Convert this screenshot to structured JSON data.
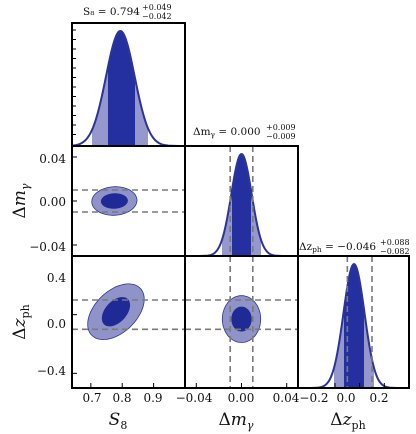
{
  "chart_data": {
    "type": "corner",
    "parameters": [
      {
        "key": "S8",
        "label": "S₈",
        "title_lhs": "S₈ = 0.794",
        "title_sup": "+0.049",
        "title_sub": "−0.042",
        "mean": 0.794,
        "err_plus": 0.049,
        "err_minus": 0.042,
        "range": [
          0.64,
          1.0
        ],
        "ticks": [
          0.7,
          0.8,
          0.9
        ],
        "tick_labels": [
          "0.7",
          "0.8",
          "0.9"
        ]
      },
      {
        "key": "dm",
        "label": "Δm",
        "label_sub": "γ",
        "title_lhs": "Δm",
        "title_lhs_sub": "γ",
        "title_rhs": " = 0.000",
        "title_sup": "+0.009",
        "title_sub": "−0.009",
        "mean": 0.0,
        "err_plus": 0.009,
        "err_minus": 0.009,
        "range": [
          -0.05,
          0.05
        ],
        "ticks": [
          -0.04,
          0.0,
          0.04
        ],
        "tick_labels": [
          "−0.04",
          "0.00",
          "0.04"
        ]
      },
      {
        "key": "dz",
        "label": "Δz",
        "label_sub": "ph",
        "title_lhs": "Δz",
        "title_lhs_sub": "ph",
        "title_rhs": " = −0.046",
        "title_sup": "+0.088",
        "title_sub": "−0.082",
        "mean": -0.046,
        "err_plus": 0.088,
        "err_minus": 0.082,
        "range": [
          -0.5,
          0.4
        ],
        "ticks": [
          -0.4,
          0.0,
          0.4
        ],
        "tick_labels": [
          "−0.4",
          "0.0",
          "0.4"
        ],
        "x_ticks": [
          -0.2,
          0.0,
          0.2
        ],
        "x_tick_labels": [
          "−0.2",
          "0.0",
          "0.2"
        ]
      }
    ],
    "contours": [
      {
        "x": "S8",
        "y": "dm",
        "center": [
          0.775,
          0.0
        ],
        "sigma68": [
          0.043,
          0.007
        ],
        "sigma95": [
          0.072,
          0.013
        ],
        "corr": 0.05
      },
      {
        "x": "S8",
        "y": "dz",
        "center": [
          0.78,
          0.02
        ],
        "sigma68": [
          0.045,
          0.1
        ],
        "sigma95": [
          0.09,
          0.19
        ],
        "corr": 0.45
      },
      {
        "x": "dm",
        "y": "dz",
        "center": [
          0.0,
          -0.03
        ],
        "sigma68": [
          0.009,
          0.085
        ],
        "sigma95": [
          0.017,
          0.16
        ],
        "corr": 0.0
      }
    ],
    "priors": {
      "dm": [
        -0.01,
        0.01
      ],
      "dz": [
        -0.1,
        0.1
      ]
    },
    "colors": {
      "contour_inner": "#1f2a96",
      "contour_outer": "#8f93c7",
      "line": "#2c3597",
      "fill_inner": "#2530a0",
      "fill_outer": "#9598cc",
      "dashed": "#7a7a7a",
      "frame": "#000000"
    }
  }
}
